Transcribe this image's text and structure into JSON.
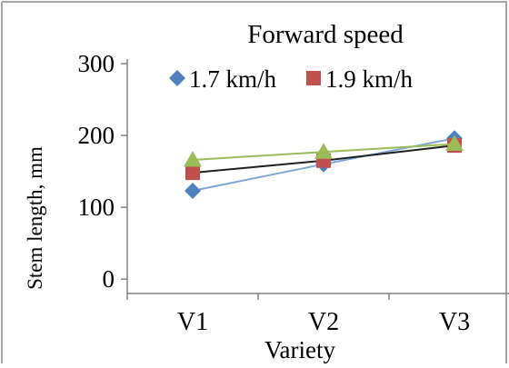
{
  "chart_data": {
    "type": "line",
    "legend_title": "Forward speed",
    "xlabel": "Variety",
    "ylabel": "Stem length, mm",
    "categories": [
      "V1",
      "V2",
      "V3"
    ],
    "y_ticks": [
      0,
      100,
      200,
      300
    ],
    "ylim": [
      -20,
      300
    ],
    "grid": false,
    "legend_position": "top",
    "series": [
      {
        "name": "1.7 km/h",
        "values": [
          123,
          160,
          196
        ],
        "color": "#4f81bd",
        "marker": "diamond",
        "line_color": "#7ea6d8"
      },
      {
        "name": "1.9 km/h",
        "values": [
          148,
          165,
          186
        ],
        "color": "#c0504d",
        "marker": "square",
        "line_color": "#1f1f1f"
      },
      {
        "values": [
          166,
          177,
          188
        ],
        "color": "#9bbb59",
        "marker": "triangle",
        "line_color": "#9bbb59"
      }
    ]
  }
}
